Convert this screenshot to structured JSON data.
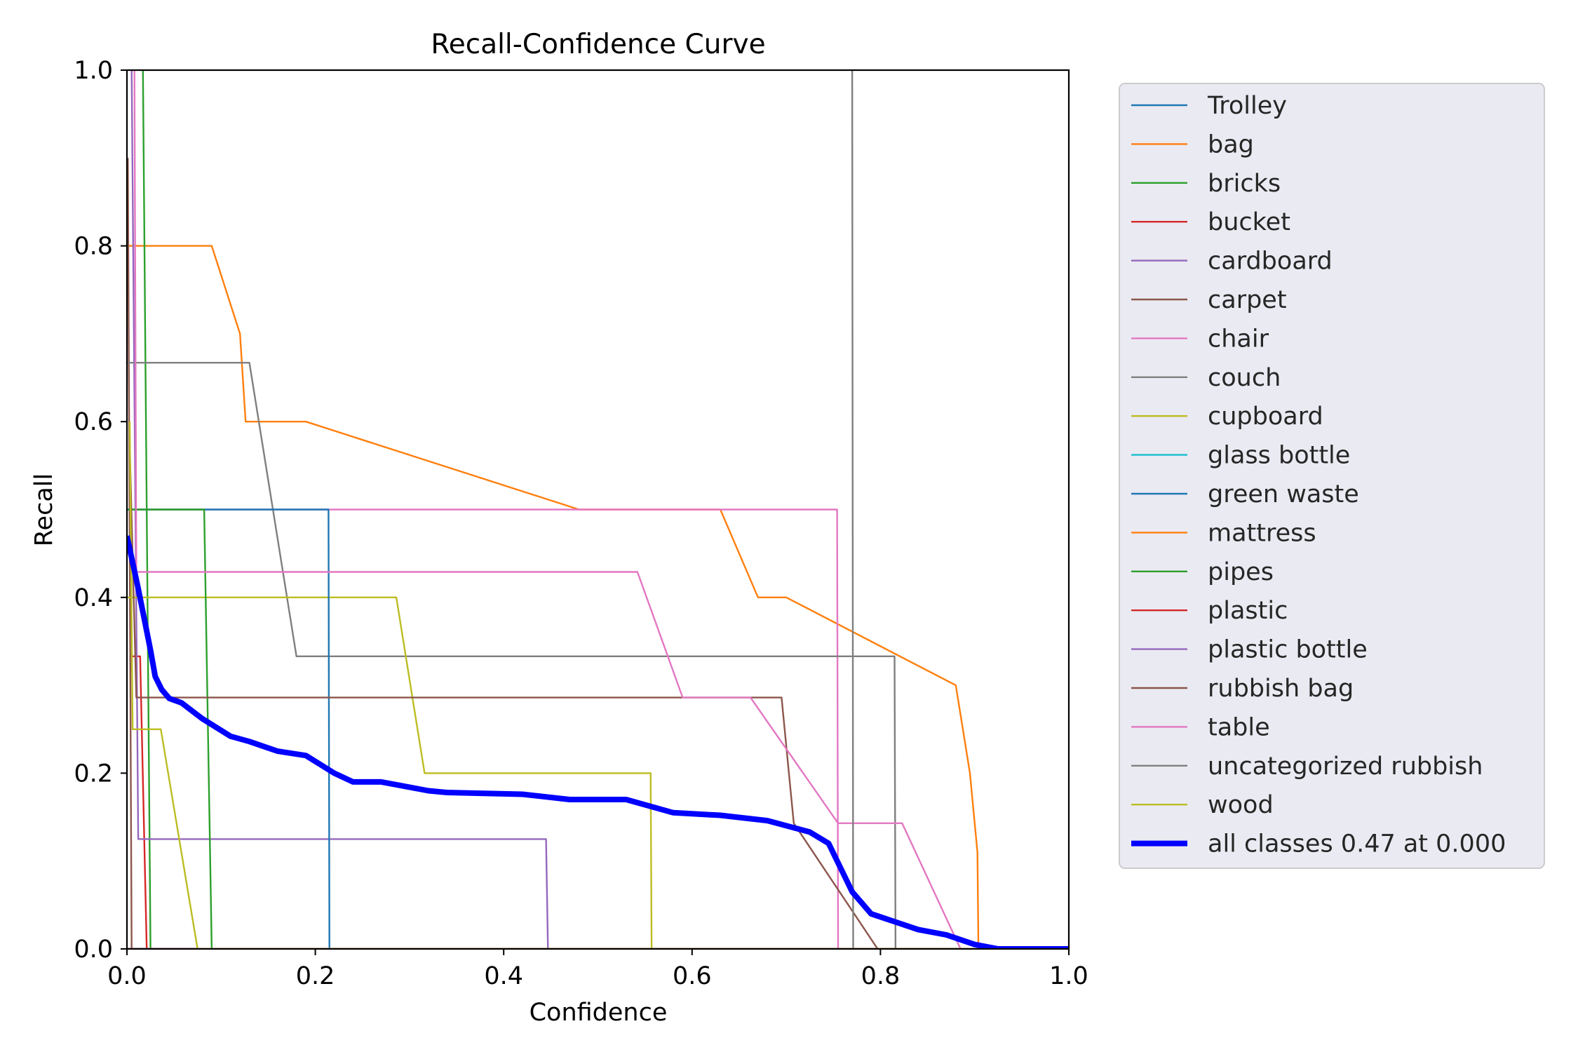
{
  "chart_data": {
    "type": "line",
    "title": "Recall-Confidence Curve",
    "xlabel": "Confidence",
    "ylabel": "Recall",
    "xlim": [
      0,
      1
    ],
    "ylim": [
      0,
      1
    ],
    "xticks": [
      "0.0",
      "0.2",
      "0.4",
      "0.6",
      "0.8",
      "1.0"
    ],
    "yticks": [
      "0.0",
      "0.2",
      "0.4",
      "0.6",
      "0.8",
      "1.0"
    ],
    "grid": false,
    "legend_position": "outside-right",
    "series": [
      {
        "name": "Trolley",
        "color": "#1f77b4",
        "width": "thin",
        "points": [
          [
            0.0,
            0.0
          ],
          [
            1.0,
            0.0
          ]
        ]
      },
      {
        "name": "bag",
        "color": "#ff7f0e",
        "width": "thin",
        "points": [
          [
            0.0,
            0.8
          ],
          [
            0.09,
            0.8
          ],
          [
            0.12,
            0.7
          ],
          [
            0.126,
            0.6
          ],
          [
            0.19,
            0.6
          ],
          [
            0.48,
            0.5
          ],
          [
            0.63,
            0.5
          ],
          [
            0.67,
            0.4
          ],
          [
            0.7,
            0.4
          ],
          [
            0.88,
            0.3
          ],
          [
            0.895,
            0.2
          ],
          [
            0.903,
            0.11
          ],
          [
            0.904,
            0.0
          ],
          [
            1.0,
            0.0
          ]
        ]
      },
      {
        "name": "bricks",
        "color": "#2ca02c",
        "width": "thin",
        "points": [
          [
            0.017,
            1.0
          ],
          [
            0.025,
            0.0
          ],
          [
            1.0,
            0.0
          ]
        ]
      },
      {
        "name": "bucket",
        "color": "#d62728",
        "width": "thin",
        "points": [
          [
            0.003,
            0.333
          ],
          [
            0.014,
            0.333
          ],
          [
            0.021,
            0.0
          ],
          [
            1.0,
            0.0
          ]
        ]
      },
      {
        "name": "cardboard",
        "color": "#9467bd",
        "width": "thin",
        "points": [
          [
            0.005,
            1.0
          ],
          [
            0.012,
            0.125
          ],
          [
            0.445,
            0.125
          ],
          [
            0.447,
            0.0
          ],
          [
            1.0,
            0.0
          ]
        ]
      },
      {
        "name": "carpet",
        "color": "#8c564b",
        "width": "thin",
        "points": [
          [
            0.001,
            0.9
          ],
          [
            0.005,
            0.0
          ],
          [
            1.0,
            0.0
          ]
        ]
      },
      {
        "name": "chair",
        "color": "#e377c2",
        "width": "thin",
        "points": [
          [
            0.0,
            0.5
          ],
          [
            0.754,
            0.5
          ],
          [
            0.755,
            0.0
          ],
          [
            1.0,
            0.0
          ]
        ]
      },
      {
        "name": "couch",
        "color": "#7f7f7f",
        "width": "thin",
        "points": [
          [
            0.0,
            0.667
          ],
          [
            0.13,
            0.667
          ],
          [
            0.18,
            0.333
          ],
          [
            0.815,
            0.333
          ],
          [
            0.816,
            0.0
          ],
          [
            1.0,
            0.0
          ]
        ]
      },
      {
        "name": "cupboard",
        "color": "#bcbd22",
        "width": "thin",
        "points": [
          [
            0.0,
            0.4
          ],
          [
            0.286,
            0.4
          ],
          [
            0.316,
            0.2
          ],
          [
            0.556,
            0.2
          ],
          [
            0.557,
            0.0
          ],
          [
            1.0,
            0.0
          ]
        ]
      },
      {
        "name": "glass bottle",
        "color": "#17becf",
        "width": "thin",
        "points": [
          [
            0.0,
            0.0
          ],
          [
            1.0,
            0.0
          ]
        ]
      },
      {
        "name": "green waste",
        "color": "#1f77b4",
        "width": "thin",
        "points": [
          [
            0.0,
            0.5
          ],
          [
            0.214,
            0.5
          ],
          [
            0.215,
            0.0
          ],
          [
            1.0,
            0.0
          ]
        ]
      },
      {
        "name": "mattress",
        "color": "#ff7f0e",
        "width": "thin",
        "points": [
          [
            0.0,
            0.0
          ],
          [
            1.0,
            0.0
          ]
        ]
      },
      {
        "name": "pipes",
        "color": "#2ca02c",
        "width": "thin",
        "points": [
          [
            0.0,
            0.5
          ],
          [
            0.082,
            0.5
          ],
          [
            0.09,
            0.0
          ],
          [
            1.0,
            0.0
          ]
        ]
      },
      {
        "name": "plastic",
        "color": "#d62728",
        "width": "thin",
        "points": [
          [
            0.0,
            0.0
          ],
          [
            1.0,
            0.0
          ]
        ]
      },
      {
        "name": "plastic bottle",
        "color": "#9467bd",
        "width": "thin",
        "points": [
          [
            0.0,
            0.0
          ],
          [
            1.0,
            0.0
          ]
        ]
      },
      {
        "name": "rubbish bag",
        "color": "#8c564b",
        "width": "thin",
        "points": [
          [
            0.003,
            0.571
          ],
          [
            0.01,
            0.286
          ],
          [
            0.695,
            0.286
          ],
          [
            0.708,
            0.143
          ],
          [
            0.797,
            0.0
          ],
          [
            1.0,
            0.0
          ]
        ]
      },
      {
        "name": "table",
        "color": "#e377c2",
        "width": "thin",
        "points": [
          [
            0.008,
            1.0
          ],
          [
            0.01,
            0.429
          ],
          [
            0.542,
            0.429
          ],
          [
            0.59,
            0.286
          ],
          [
            0.662,
            0.286
          ],
          [
            0.755,
            0.143
          ],
          [
            0.823,
            0.143
          ],
          [
            0.885,
            0.0
          ],
          [
            1.0,
            0.0
          ]
        ]
      },
      {
        "name": "uncategorized rubbish",
        "color": "#7f7f7f",
        "width": "thin",
        "points": [
          [
            0.77,
            1.0
          ],
          [
            0.771,
            0.0
          ]
        ]
      },
      {
        "name": "wood",
        "color": "#bcbd22",
        "width": "thin",
        "points": [
          [
            0.003,
            0.6
          ],
          [
            0.006,
            0.25
          ],
          [
            0.036,
            0.25
          ],
          [
            0.075,
            0.0
          ],
          [
            1.0,
            0.0
          ]
        ]
      },
      {
        "name": "all classes 0.47 at 0.000",
        "color": "#0000ff",
        "width": "thick",
        "points": [
          [
            0.0,
            0.47
          ],
          [
            0.012,
            0.41
          ],
          [
            0.025,
            0.34
          ],
          [
            0.03,
            0.31
          ],
          [
            0.037,
            0.295
          ],
          [
            0.045,
            0.285
          ],
          [
            0.058,
            0.28
          ],
          [
            0.08,
            0.262
          ],
          [
            0.11,
            0.242
          ],
          [
            0.13,
            0.236
          ],
          [
            0.16,
            0.225
          ],
          [
            0.19,
            0.22
          ],
          [
            0.22,
            0.2
          ],
          [
            0.24,
            0.19
          ],
          [
            0.27,
            0.19
          ],
          [
            0.29,
            0.186
          ],
          [
            0.32,
            0.18
          ],
          [
            0.34,
            0.178
          ],
          [
            0.42,
            0.176
          ],
          [
            0.47,
            0.17
          ],
          [
            0.53,
            0.17
          ],
          [
            0.58,
            0.155
          ],
          [
            0.63,
            0.152
          ],
          [
            0.68,
            0.146
          ],
          [
            0.725,
            0.133
          ],
          [
            0.745,
            0.12
          ],
          [
            0.77,
            0.065
          ],
          [
            0.79,
            0.04
          ],
          [
            0.84,
            0.022
          ],
          [
            0.87,
            0.016
          ],
          [
            0.9,
            0.005
          ],
          [
            0.925,
            0.0
          ],
          [
            1.0,
            0.0
          ]
        ]
      }
    ]
  }
}
